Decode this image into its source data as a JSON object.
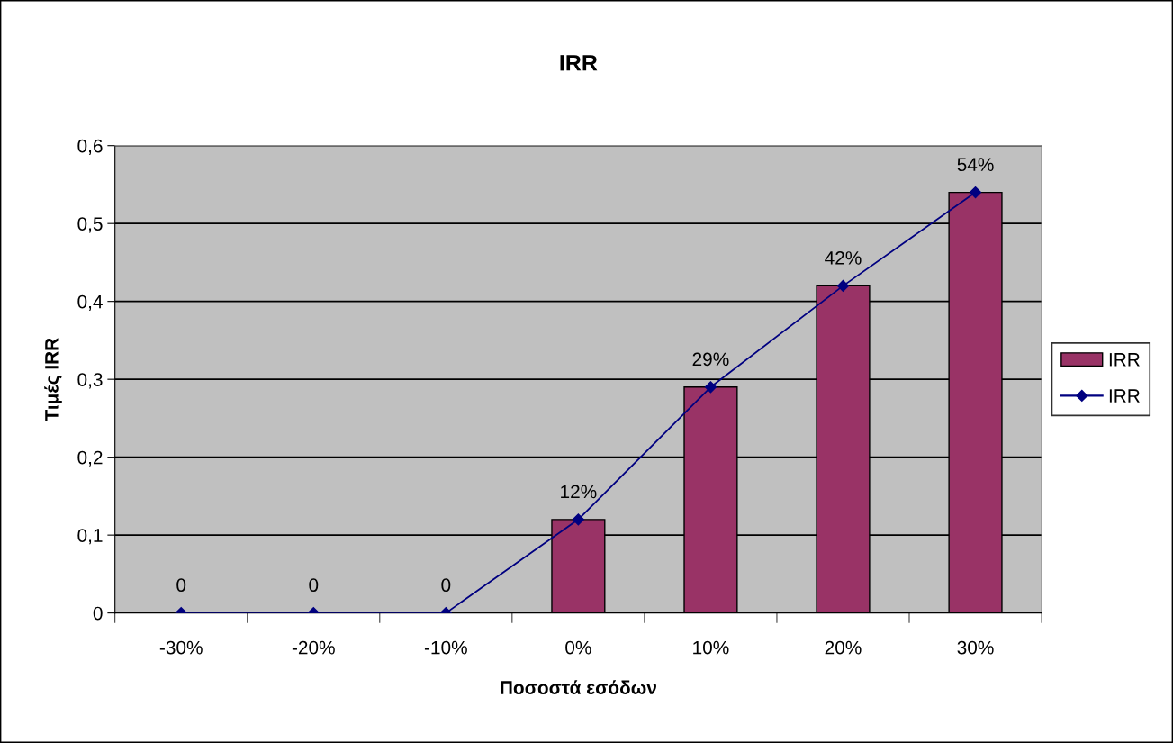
{
  "chart_data": {
    "type": "bar",
    "title": "IRR",
    "xlabel": "Ποσοστά εσόδων",
    "ylabel": "Τιμές IRR",
    "categories": [
      "-30%",
      "-20%",
      "-10%",
      "0%",
      "10%",
      "20%",
      "30%"
    ],
    "series": [
      {
        "name": "IRR",
        "color": "#993366",
        "values": [
          0,
          0,
          0,
          0.12,
          0.29,
          0.42,
          0.54
        ],
        "value_labels": [
          "0",
          "0",
          "0",
          "12%",
          "29%",
          "42%",
          "54%"
        ]
      },
      {
        "name": "IRR",
        "type": "line",
        "color": "#000080",
        "values": [
          0,
          0,
          0,
          0.12,
          0.29,
          0.42,
          0.54
        ],
        "marker": "diamond",
        "line_style": "solid"
      }
    ],
    "ylim": [
      0,
      0.6
    ],
    "yticks": [
      0,
      {
        "value": 0.1,
        "label": "0,1"
      },
      {
        "value": 0.2,
        "label": "0,2"
      },
      {
        "value": 0.3,
        "label": "0,3"
      },
      {
        "value": 0.4,
        "label": "0,4"
      },
      {
        "value": 0.5,
        "label": "0,5"
      },
      {
        "value": 0.6,
        "label": "0,6"
      }
    ],
    "grid": "y",
    "legend": "right"
  }
}
